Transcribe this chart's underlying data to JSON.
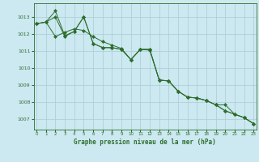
{
  "title": "Graphe pression niveau de la mer (hPa)",
  "background_color": "#cce8f0",
  "grid_color": "#aaccd4",
  "line_color": "#2d6e2d",
  "xlim": [
    -0.3,
    23.3
  ],
  "ylim": [
    1006.4,
    1013.8
  ],
  "yticks": [
    1007,
    1008,
    1009,
    1010,
    1011,
    1012,
    1013
  ],
  "xticks": [
    0,
    1,
    2,
    3,
    4,
    5,
    6,
    7,
    8,
    9,
    10,
    11,
    12,
    13,
    14,
    15,
    16,
    17,
    18,
    19,
    20,
    21,
    22,
    23
  ],
  "line1_x": [
    0,
    1,
    2,
    3,
    4,
    5,
    6,
    7,
    8,
    9,
    10,
    11,
    12,
    13,
    14,
    15,
    16,
    17,
    18,
    19,
    20,
    21,
    22,
    23
  ],
  "line1_y": [
    1012.6,
    1012.7,
    1013.35,
    1011.9,
    1012.15,
    1013.0,
    1011.45,
    1011.2,
    1011.2,
    1011.1,
    1010.5,
    1011.1,
    1011.1,
    1009.3,
    1009.25,
    1008.65,
    1008.3,
    1008.25,
    1008.1,
    1007.85,
    1007.5,
    1007.3,
    1007.1,
    1006.75
  ],
  "line2_x": [
    0,
    1,
    2,
    3,
    4,
    5,
    6,
    7,
    8,
    9,
    10,
    11,
    12,
    13,
    14,
    15,
    16,
    17,
    18,
    19,
    20,
    21,
    22,
    23
  ],
  "line2_y": [
    1012.6,
    1012.7,
    1013.0,
    1011.85,
    1012.15,
    1013.0,
    1011.45,
    1011.2,
    1011.2,
    1011.1,
    1010.5,
    1011.1,
    1011.1,
    1009.3,
    1009.25,
    1008.65,
    1008.3,
    1008.25,
    1008.1,
    1007.85,
    1007.5,
    1007.3,
    1007.1,
    1006.75
  ],
  "line3_x": [
    0,
    1,
    2,
    3,
    4,
    5,
    6,
    7,
    8,
    9,
    10,
    11,
    12,
    13,
    14,
    15,
    16,
    17,
    18,
    19,
    20,
    21,
    22,
    23
  ],
  "line3_y": [
    1012.6,
    1012.7,
    1011.85,
    1012.1,
    1012.3,
    1012.2,
    1011.85,
    1011.55,
    1011.35,
    1011.15,
    1010.5,
    1011.1,
    1011.05,
    1009.3,
    1009.25,
    1008.65,
    1008.3,
    1008.25,
    1008.1,
    1007.85,
    1007.85,
    1007.3,
    1007.1,
    1006.75
  ]
}
